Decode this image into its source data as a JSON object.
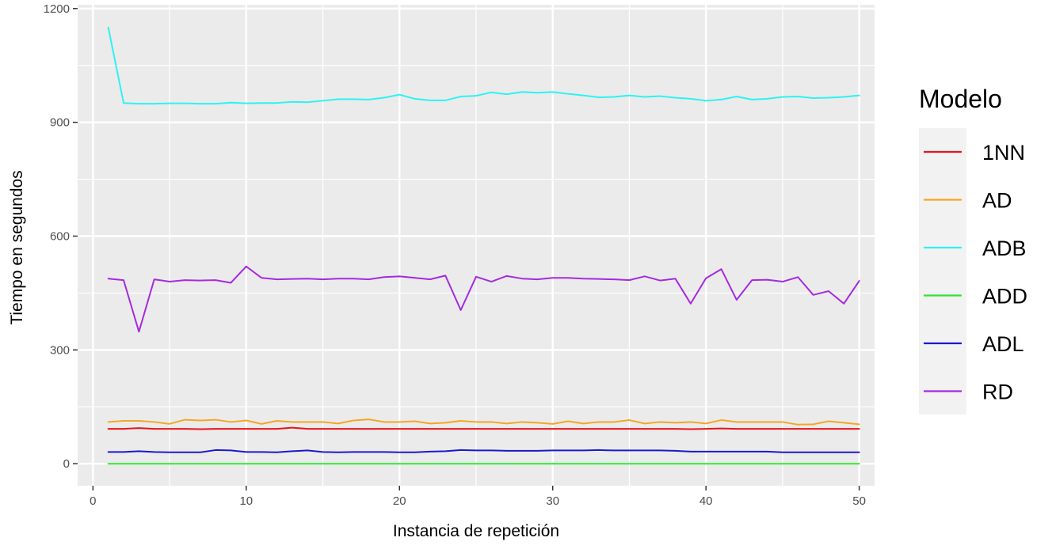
{
  "chart_data": {
    "type": "line",
    "title": "",
    "xlabel": "Instancia de repetición",
    "ylabel": "Tiempo en segundos",
    "xlim": [
      -1,
      51
    ],
    "ylim": [
      -58,
      1210
    ],
    "x_ticks": [
      0,
      10,
      20,
      30,
      40,
      50
    ],
    "y_ticks": [
      0,
      300,
      600,
      900,
      1200
    ],
    "grid": true,
    "legend": {
      "title": "Modelo",
      "position": "right"
    },
    "x": [
      1,
      2,
      3,
      4,
      5,
      6,
      7,
      8,
      9,
      10,
      11,
      12,
      13,
      14,
      15,
      16,
      17,
      18,
      19,
      20,
      21,
      22,
      23,
      24,
      25,
      26,
      27,
      28,
      29,
      30,
      31,
      32,
      33,
      34,
      35,
      36,
      37,
      38,
      39,
      40,
      41,
      42,
      43,
      44,
      45,
      46,
      47,
      48,
      49,
      50
    ],
    "series": [
      {
        "name": "1NN",
        "color": "#e8141a",
        "values": [
          92,
          92,
          94,
          92,
          92,
          92,
          91,
          92,
          92,
          92,
          92,
          92,
          95,
          92,
          92,
          92,
          92,
          92,
          92,
          92,
          92,
          92,
          92,
          92,
          92,
          92,
          92,
          92,
          92,
          92,
          92,
          92,
          92,
          92,
          92,
          92,
          92,
          92,
          91,
          92,
          93,
          92,
          92,
          92,
          92,
          92,
          92,
          92,
          92,
          92
        ]
      },
      {
        "name": "AD",
        "color": "#f5a623",
        "values": [
          110,
          113,
          113,
          110,
          105,
          116,
          114,
          116,
          110,
          114,
          105,
          113,
          110,
          110,
          110,
          106,
          114,
          117,
          110,
          110,
          112,
          106,
          108,
          113,
          110,
          110,
          106,
          110,
          108,
          105,
          112,
          106,
          110,
          110,
          115,
          106,
          110,
          108,
          110,
          106,
          115,
          110,
          110,
          110,
          110,
          103,
          104,
          112,
          108,
          104
        ]
      },
      {
        "name": "ADB",
        "color": "#2ef2f2",
        "values": [
          1150,
          951,
          949,
          949,
          950,
          950,
          949,
          949,
          952,
          950,
          951,
          951,
          954,
          953,
          957,
          961,
          961,
          960,
          965,
          973,
          962,
          958,
          958,
          968,
          970,
          979,
          974,
          980,
          978,
          980,
          975,
          971,
          966,
          967,
          971,
          967,
          969,
          965,
          962,
          957,
          960,
          968,
          960,
          962,
          967,
          968,
          964,
          965,
          967,
          971
        ]
      },
      {
        "name": "ADD",
        "color": "#2ee62e",
        "values": [
          0,
          0,
          0,
          0,
          0,
          0,
          0,
          0,
          0,
          0,
          0,
          0,
          0,
          0,
          0,
          0,
          0,
          0,
          0,
          0,
          0,
          0,
          0,
          0,
          0,
          0,
          0,
          0,
          0,
          0,
          0,
          0,
          0,
          0,
          0,
          0,
          0,
          0,
          0,
          0,
          0,
          0,
          0,
          0,
          0,
          0,
          0,
          0,
          0,
          0
        ]
      },
      {
        "name": "ADL",
        "color": "#1a1acc",
        "values": [
          31,
          31,
          33,
          31,
          30,
          30,
          30,
          36,
          35,
          31,
          31,
          30,
          33,
          35,
          31,
          30,
          31,
          31,
          31,
          30,
          30,
          32,
          33,
          36,
          35,
          35,
          34,
          34,
          34,
          35,
          35,
          35,
          36,
          35,
          35,
          35,
          35,
          34,
          32,
          32,
          32,
          32,
          32,
          32,
          30,
          30,
          30,
          30,
          30,
          30
        ]
      },
      {
        "name": "RD",
        "color": "#a52ae0",
        "values": [
          488,
          484,
          348,
          486,
          480,
          484,
          483,
          484,
          477,
          520,
          490,
          486,
          487,
          488,
          486,
          488,
          488,
          486,
          492,
          494,
          490,
          486,
          496,
          405,
          493,
          480,
          495,
          488,
          486,
          490,
          490,
          488,
          487,
          486,
          484,
          494,
          483,
          488,
          422,
          489,
          513,
          432,
          484,
          485,
          480,
          492,
          445,
          455,
          422,
          482
        ]
      }
    ]
  }
}
